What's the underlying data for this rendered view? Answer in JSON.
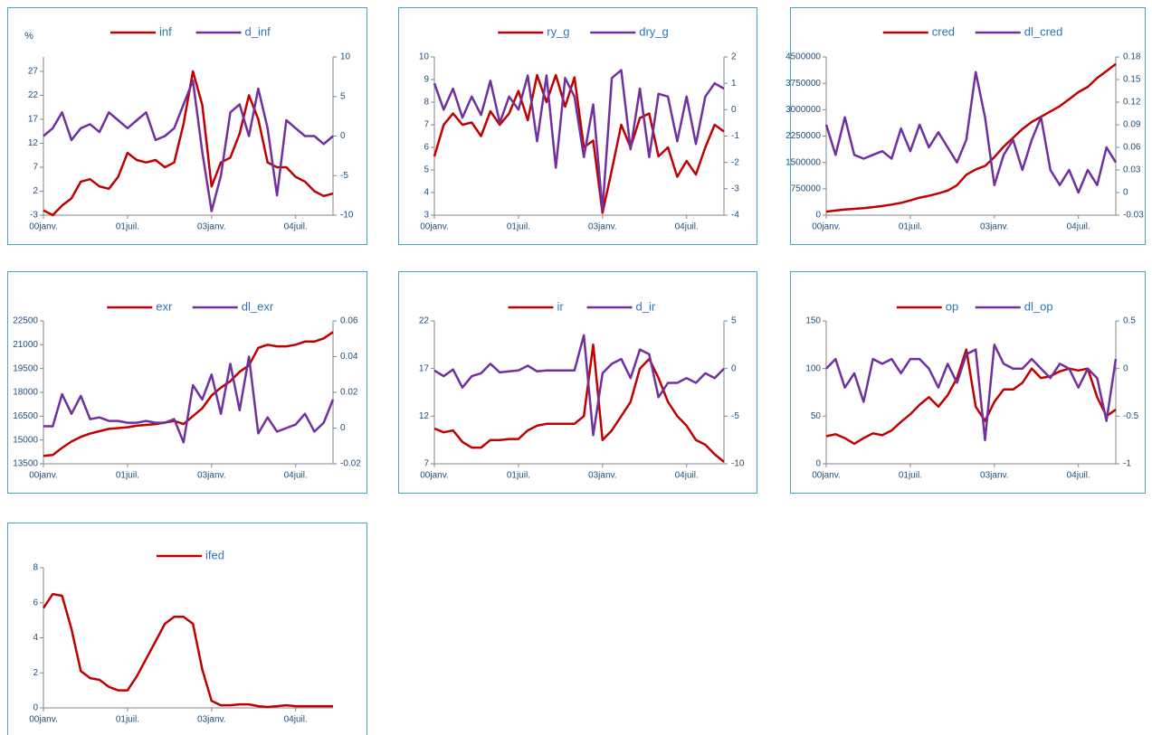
{
  "chart_data": [
    {
      "type": "line",
      "y_label": "%",
      "categories": [
        "00janv.",
        null,
        null,
        null,
        null,
        null,
        null,
        null,
        null,
        "01juil.",
        null,
        null,
        null,
        null,
        null,
        null,
        null,
        null,
        "03janv.",
        null,
        null,
        null,
        null,
        null,
        null,
        null,
        null,
        "04juil.",
        null,
        null,
        null,
        null
      ],
      "series": [
        {
          "name": "inf",
          "color": "#c00000",
          "values": [
            -2,
            -3,
            -1,
            0.5,
            4,
            4.5,
            3,
            2.5,
            5,
            10,
            8.5,
            8,
            8.5,
            7,
            8,
            16,
            27,
            20,
            3,
            8,
            9,
            14,
            22,
            17,
            8,
            7,
            7,
            5,
            4,
            2,
            1,
            1.5
          ]
        },
        {
          "name": "d_inf",
          "color": "#7030a0",
          "axis": "y2",
          "values": [
            0,
            1,
            3,
            -0.5,
            1,
            1.5,
            0.5,
            3,
            2,
            1,
            2,
            3,
            -0.5,
            0,
            1,
            4,
            7,
            -2,
            -9.5,
            -5,
            3,
            4,
            0,
            6,
            1,
            -7.5,
            2,
            1,
            0,
            0,
            -1,
            0
          ]
        }
      ],
      "ylim": [
        -3,
        30
      ],
      "yticks": [
        -3,
        2,
        7,
        12,
        17,
        22,
        27
      ],
      "y2lim": [
        -10,
        10
      ],
      "y2ticks": [
        -10,
        -5,
        0,
        5,
        10
      ]
    },
    {
      "type": "line",
      "categories": [
        "00janv.",
        null,
        null,
        null,
        null,
        null,
        null,
        null,
        null,
        "01juil.",
        null,
        null,
        null,
        null,
        null,
        null,
        null,
        null,
        "03janv.",
        null,
        null,
        null,
        null,
        null,
        null,
        null,
        null,
        "04juil.",
        null,
        null,
        null,
        null
      ],
      "series": [
        {
          "name": "ry_g",
          "color": "#c00000",
          "values": [
            5.6,
            7,
            7.5,
            7,
            7.1,
            6.5,
            7.6,
            7,
            7.5,
            8.5,
            7.2,
            9.2,
            8,
            9.2,
            7.8,
            9.1,
            6,
            6.3,
            3.1,
            5,
            7,
            6,
            7.3,
            7.5,
            5.6,
            6,
            4.7,
            5.4,
            4.8,
            6,
            7,
            6.7
          ]
        },
        {
          "name": "dry_g",
          "color": "#7030a0",
          "axis": "y2",
          "values": [
            1,
            0,
            0.8,
            -0.3,
            0.5,
            -0.2,
            1.1,
            -0.5,
            0.5,
            0,
            1.3,
            -1.2,
            1.3,
            -2.2,
            1.2,
            0.5,
            -1.8,
            0.2,
            -3.8,
            1.2,
            1.5,
            -1.5,
            0.8,
            -1.8,
            0.6,
            0.5,
            -1.2,
            0.5,
            -1.3,
            0.5,
            1,
            0.8
          ]
        }
      ],
      "ylim": [
        3,
        10
      ],
      "yticks": [
        3,
        4,
        5,
        6,
        7,
        8,
        9,
        10
      ],
      "y2lim": [
        -4,
        2
      ],
      "y2ticks": [
        -4,
        -3,
        -2,
        -1,
        0,
        1,
        2
      ]
    },
    {
      "type": "line",
      "categories": [
        "00janv.",
        null,
        null,
        null,
        null,
        null,
        null,
        null,
        null,
        "01juil.",
        null,
        null,
        null,
        null,
        null,
        null,
        null,
        null,
        "03janv.",
        null,
        null,
        null,
        null,
        null,
        null,
        null,
        null,
        "04juil.",
        null,
        null,
        null,
        null
      ],
      "series": [
        {
          "name": "cred",
          "color": "#c00000",
          "values": [
            100000,
            130000,
            160000,
            180000,
            200000,
            230000,
            260000,
            300000,
            350000,
            420000,
            500000,
            550000,
            620000,
            700000,
            850000,
            1150000,
            1300000,
            1400000,
            1650000,
            1950000,
            2200000,
            2450000,
            2650000,
            2800000,
            2950000,
            3100000,
            3300000,
            3500000,
            3650000,
            3900000,
            4100000,
            4300000
          ]
        },
        {
          "name": "dl_cred",
          "color": "#7030a0",
          "axis": "y2",
          "values": [
            0.09,
            0.05,
            0.1,
            0.05,
            0.045,
            0.05,
            0.055,
            0.045,
            0.085,
            0.055,
            0.09,
            0.06,
            0.08,
            0.06,
            0.04,
            0.07,
            0.16,
            0.1,
            0.01,
            0.05,
            0.07,
            0.03,
            0.07,
            0.1,
            0.03,
            0.01,
            0.03,
            0,
            0.03,
            0.01,
            0.06,
            0.04
          ]
        }
      ],
      "ylim": [
        0,
        4500000
      ],
      "yticks": [
        0,
        750000,
        1500000,
        2250000,
        3000000,
        3750000,
        4500000
      ],
      "y2lim": [
        -0.03,
        0.18
      ],
      "y2ticks": [
        -0.03,
        0,
        0.03,
        0.06,
        0.09,
        0.12,
        0.15,
        0.18
      ]
    },
    {
      "type": "line",
      "categories": [
        "00janv.",
        null,
        null,
        null,
        null,
        null,
        null,
        null,
        null,
        "01juil.",
        null,
        null,
        null,
        null,
        null,
        null,
        null,
        null,
        "03janv.",
        null,
        null,
        null,
        null,
        null,
        null,
        null,
        null,
        "04juil.",
        null,
        null,
        null,
        null
      ],
      "series": [
        {
          "name": "exr",
          "color": "#c00000",
          "values": [
            14000,
            14050,
            14500,
            14900,
            15200,
            15400,
            15550,
            15700,
            15750,
            15800,
            15900,
            15950,
            16000,
            16100,
            16200,
            16000,
            16500,
            17000,
            17800,
            18300,
            18700,
            19300,
            19700,
            20800,
            21000,
            20900,
            20900,
            21000,
            21200,
            21200,
            21400,
            21800
          ]
        },
        {
          "name": "dl_exr",
          "color": "#7030a0",
          "axis": "y2",
          "values": [
            0.001,
            0.001,
            0.019,
            0.008,
            0.018,
            0.005,
            0.006,
            0.004,
            0.004,
            0.003,
            0.003,
            0.004,
            0.003,
            0.003,
            0.005,
            -0.008,
            0.024,
            0.016,
            0.03,
            0.008,
            0.036,
            0.01,
            0.04,
            -0.003,
            0.006,
            -0.002,
            0,
            0.002,
            0.008,
            -0.002,
            0.003,
            0.016
          ]
        }
      ],
      "ylim": [
        13500,
        22500
      ],
      "yticks": [
        13500,
        15000,
        16500,
        18000,
        19500,
        21000,
        22500
      ],
      "y2lim": [
        -0.02,
        0.06
      ],
      "y2ticks": [
        -0.02,
        0,
        0.02,
        0.04,
        0.06
      ]
    },
    {
      "type": "line",
      "categories": [
        "00janv.",
        null,
        null,
        null,
        null,
        null,
        null,
        null,
        null,
        "01juil.",
        null,
        null,
        null,
        null,
        null,
        null,
        null,
        null,
        "03janv.",
        null,
        null,
        null,
        null,
        null,
        null,
        null,
        null,
        "04juil.",
        null,
        null,
        null,
        null
      ],
      "series": [
        {
          "name": "ir",
          "color": "#c00000",
          "values": [
            10.7,
            10.3,
            10.5,
            9.3,
            8.7,
            8.7,
            9.5,
            9.5,
            9.6,
            9.6,
            10.5,
            11,
            11.2,
            11.2,
            11.2,
            11.2,
            12,
            19.5,
            9.5,
            10.5,
            12,
            13.5,
            17,
            18,
            16,
            13.5,
            12,
            11,
            9.5,
            9,
            8,
            7.2
          ]
        },
        {
          "name": "d_ir",
          "color": "#7030a0",
          "axis": "y2",
          "values": [
            -0.2,
            -0.8,
            -0.1,
            -2,
            -0.8,
            -0.5,
            0.5,
            -0.4,
            -0.3,
            -0.2,
            0.3,
            -0.3,
            -0.2,
            -0.2,
            -0.2,
            -0.2,
            3.5,
            -7,
            -0.5,
            0.5,
            1,
            -1,
            2,
            1.5,
            -3,
            -1.5,
            -1.5,
            -1,
            -1.5,
            -0.5,
            -1,
            0
          ]
        }
      ],
      "ylim": [
        7,
        22
      ],
      "yticks": [
        7,
        12,
        17,
        22
      ],
      "y2lim": [
        -10,
        5
      ],
      "y2ticks": [
        -10,
        -5,
        0,
        5
      ]
    },
    {
      "type": "line",
      "categories": [
        "00janv.",
        null,
        null,
        null,
        null,
        null,
        null,
        null,
        null,
        "01juil.",
        null,
        null,
        null,
        null,
        null,
        null,
        null,
        null,
        "03janv.",
        null,
        null,
        null,
        null,
        null,
        null,
        null,
        null,
        "04juil.",
        null,
        null,
        null,
        null
      ],
      "series": [
        {
          "name": "op",
          "color": "#c00000",
          "values": [
            29,
            31,
            27,
            21,
            27,
            32,
            30,
            35,
            44,
            52,
            62,
            70,
            60,
            72,
            90,
            120,
            60,
            45,
            65,
            78,
            78,
            85,
            100,
            90,
            92,
            97,
            100,
            98,
            100,
            70,
            50,
            57
          ]
        },
        {
          "name": "dl_op",
          "color": "#7030a0",
          "axis": "y2",
          "values": [
            0,
            0.1,
            -0.2,
            -0.05,
            -0.35,
            0.1,
            0.05,
            0.1,
            -0.05,
            0.1,
            0.1,
            0,
            -0.2,
            0.05,
            -0.15,
            0.15,
            0.2,
            -0.75,
            0.25,
            0.05,
            0,
            0,
            0.1,
            0,
            -0.1,
            0.05,
            0,
            -0.2,
            0,
            -0.1,
            -0.55,
            0.1
          ]
        }
      ],
      "ylim": [
        0,
        150
      ],
      "yticks": [
        0,
        50,
        100,
        150
      ],
      "y2lim": [
        -1,
        0.5
      ],
      "y2ticks": [
        -1,
        -0.5,
        0,
        0.5
      ]
    },
    {
      "type": "line",
      "categories": [
        "00janv.",
        null,
        null,
        null,
        null,
        null,
        null,
        null,
        null,
        "01juil.",
        null,
        null,
        null,
        null,
        null,
        null,
        null,
        null,
        "03janv.",
        null,
        null,
        null,
        null,
        null,
        null,
        null,
        null,
        "04juil.",
        null,
        null,
        null,
        null
      ],
      "series": [
        {
          "name": "ifed",
          "color": "#c00000",
          "values": [
            5.7,
            6.5,
            6.4,
            4.5,
            2.1,
            1.7,
            1.6,
            1.2,
            1,
            1,
            1.8,
            2.8,
            3.8,
            4.8,
            5.2,
            5.2,
            4.8,
            2.2,
            0.4,
            0.15,
            0.15,
            0.2,
            0.2,
            0.1,
            0.05,
            0.1,
            0.15,
            0.1,
            0.1,
            0.1,
            0.1,
            0.1
          ]
        }
      ],
      "ylim": [
        0,
        8
      ],
      "yticks": [
        0,
        2,
        4,
        6,
        8
      ]
    }
  ]
}
